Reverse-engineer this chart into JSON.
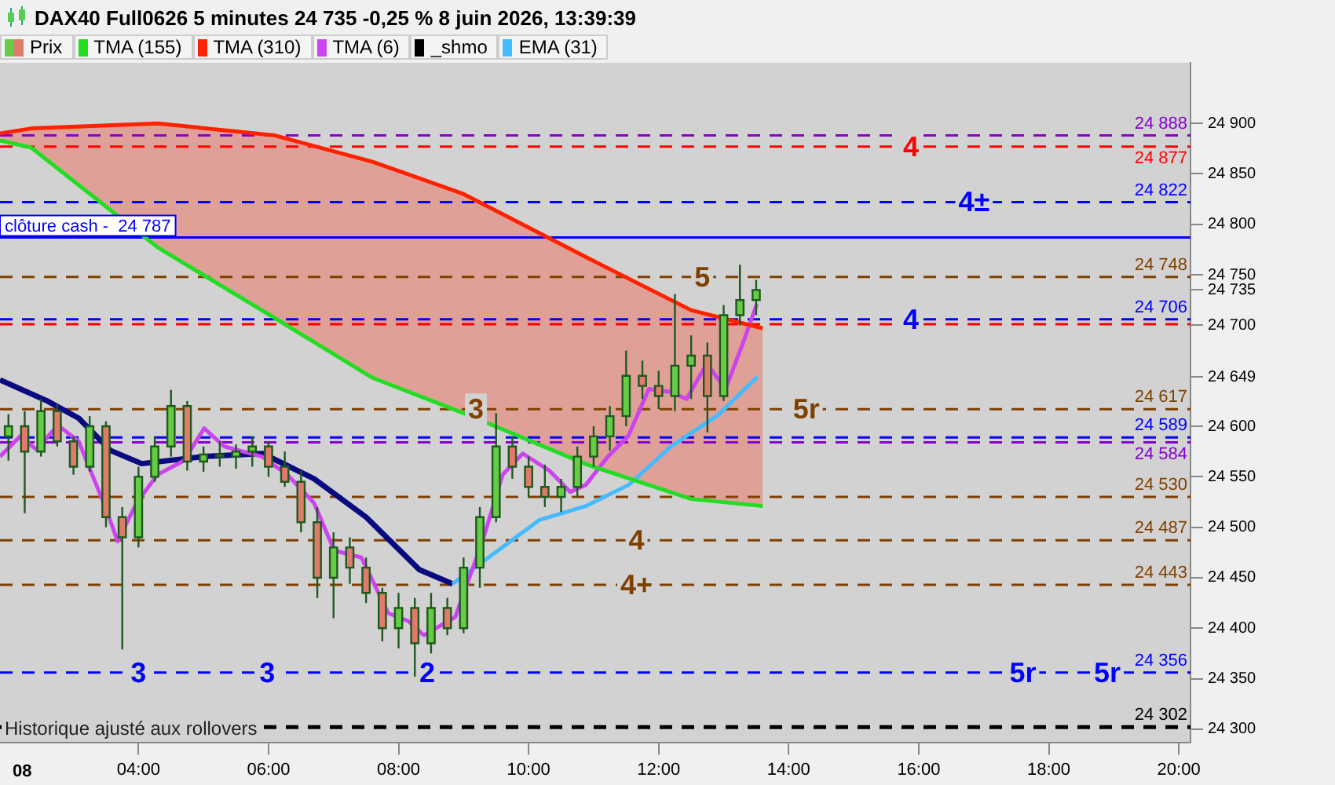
{
  "chart_data": {
    "type": "candlestick",
    "title": "DAX40 Full0626 5 minutes 24 735 -0,25 % 8 juin 2026, 13:39:39",
    "legend": "top left",
    "grid": false,
    "xlabel": "08",
    "xlim": [
      1.87,
      20.18
    ],
    "xticks": [
      {
        "value": 4,
        "label": "04:00"
      },
      {
        "value": 6,
        "label": "06:00"
      },
      {
        "value": 8,
        "label": "08:00"
      },
      {
        "value": 10,
        "label": "10:00"
      },
      {
        "value": 12,
        "label": "12:00"
      },
      {
        "value": 14,
        "label": "14:00"
      },
      {
        "value": 16,
        "label": "16:00"
      },
      {
        "value": 18,
        "label": "18:00"
      },
      {
        "value": 20,
        "label": "20:00"
      }
    ],
    "ylim": [
      24287,
      24960
    ],
    "yticks": [
      {
        "value": 24300,
        "label": "24 300"
      },
      {
        "value": 24350,
        "label": "24 350"
      },
      {
        "value": 24400,
        "label": "24 400"
      },
      {
        "value": 24450,
        "label": "24 450"
      },
      {
        "value": 24500,
        "label": "24 500"
      },
      {
        "value": 24550,
        "label": "24 550"
      },
      {
        "value": 24600,
        "label": "24 600"
      },
      {
        "value": 24649,
        "label": "24 649"
      },
      {
        "value": 24700,
        "label": "24 700"
      },
      {
        "value": 24735,
        "label": "24 735"
      },
      {
        "value": 24750,
        "label": "24 750"
      },
      {
        "value": 24800,
        "label": "24 800"
      },
      {
        "value": 24850,
        "label": "24 850"
      },
      {
        "value": 24900,
        "label": "24 900"
      }
    ],
    "series": [
      {
        "name": "Prix",
        "x": [
          2,
          2.25,
          2.5,
          2.75,
          3,
          3.25,
          3.5,
          3.75,
          4,
          4.25,
          4.5,
          4.75,
          5,
          5.25,
          5.5,
          5.75,
          6,
          6.25,
          6.5,
          6.75,
          7,
          7.25,
          7.5,
          7.75,
          8,
          8.25,
          8.5,
          8.75,
          9,
          9.25,
          9.5,
          9.75,
          10,
          10.25,
          10.5,
          10.75,
          11,
          11.25,
          11.5,
          11.75,
          12,
          12.25,
          12.5,
          12.75,
          13,
          13.25,
          13.5
        ],
        "ohlc": [
          [
            24590,
            24612,
            24566,
            24600
          ],
          [
            24600,
            24615,
            24514,
            24575
          ],
          [
            24575,
            24627,
            24570,
            24615
          ],
          [
            24615,
            24622,
            24580,
            24585
          ],
          [
            24585,
            24590,
            24552,
            24560
          ],
          [
            24560,
            24610,
            24555,
            24600
          ],
          [
            24600,
            24605,
            24500,
            24510
          ],
          [
            24510,
            24520,
            24379,
            24490
          ],
          [
            24490,
            24560,
            24480,
            24550
          ],
          [
            24550,
            24590,
            24545,
            24580
          ],
          [
            24580,
            24636,
            24570,
            24620
          ],
          [
            24620,
            24625,
            24556,
            24565
          ],
          [
            24565,
            24580,
            24555,
            24572
          ],
          [
            24572,
            24585,
            24560,
            24570
          ],
          [
            24570,
            24582,
            24558,
            24575
          ],
          [
            24575,
            24590,
            24560,
            24580
          ],
          [
            24580,
            24585,
            24550,
            24560
          ],
          [
            24560,
            24575,
            24540,
            24545
          ],
          [
            24545,
            24556,
            24495,
            24505
          ],
          [
            24505,
            24520,
            24430,
            24450
          ],
          [
            24450,
            24495,
            24410,
            24480
          ],
          [
            24480,
            24490,
            24444,
            24460
          ],
          [
            24460,
            24470,
            24425,
            24435
          ],
          [
            24435,
            24440,
            24387,
            24400
          ],
          [
            24400,
            24435,
            24380,
            24420
          ],
          [
            24420,
            24430,
            24352,
            24385
          ],
          [
            24385,
            24435,
            24375,
            24420
          ],
          [
            24420,
            24430,
            24393,
            24400
          ],
          [
            24400,
            24470,
            24395,
            24460
          ],
          [
            24460,
            24520,
            24440,
            24510
          ],
          [
            24510,
            24613,
            24505,
            24580
          ],
          [
            24580,
            24590,
            24548,
            24560
          ],
          [
            24560,
            24570,
            24530,
            24540
          ],
          [
            24540,
            24562,
            24520,
            24530
          ],
          [
            24530,
            24548,
            24515,
            24540
          ],
          [
            24540,
            24580,
            24530,
            24570
          ],
          [
            24570,
            24600,
            24560,
            24590
          ],
          [
            24590,
            24620,
            24576,
            24610
          ],
          [
            24610,
            24675,
            24600,
            24650
          ],
          [
            24650,
            24665,
            24627,
            24640
          ],
          [
            24640,
            24655,
            24617,
            24630
          ],
          [
            24630,
            24731,
            24615,
            24660
          ],
          [
            24660,
            24690,
            24627,
            24670
          ],
          [
            24670,
            24683,
            24594,
            24630
          ],
          [
            24630,
            24720,
            24625,
            24710
          ],
          [
            24710,
            24760,
            24700,
            24725
          ],
          [
            24725,
            24745,
            24710,
            24735
          ]
        ],
        "colors": [
          "#66cc44",
          "#e07a6a",
          "#66cc44",
          "#e07a6a",
          "#e07a6a",
          "#66cc44",
          "#e07a6a",
          "#e07a6a",
          "#66cc44",
          "#66cc44",
          "#66cc44",
          "#e07a6a",
          "#66cc44",
          "#e07a6a",
          "#66cc44",
          "#66cc44",
          "#e07a6a",
          "#e07a6a",
          "#e07a6a",
          "#e07a6a",
          "#66cc44",
          "#e07a6a",
          "#e07a6a",
          "#e07a6a",
          "#66cc44",
          "#e07a6a",
          "#66cc44",
          "#e07a6a",
          "#66cc44",
          "#66cc44",
          "#66cc44",
          "#e07a6a",
          "#e07a6a",
          "#e07a6a",
          "#66cc44",
          "#66cc44",
          "#66cc44",
          "#66cc44",
          "#66cc44",
          "#e07a6a",
          "#e07a6a",
          "#66cc44",
          "#66cc44",
          "#e07a6a",
          "#66cc44",
          "#66cc44",
          "#66cc44"
        ]
      },
      {
        "name": "TMA (155)",
        "type": "line",
        "color": "#22dd22",
        "x": [
          1.87,
          2.35,
          4.3,
          6.1,
          7.6,
          9,
          10.9,
          12.5,
          13.6
        ],
        "values": [
          24883,
          24876,
          24777,
          24707,
          24648,
          24613,
          24562,
          24528,
          24521
        ]
      },
      {
        "name": "TMA (310)",
        "type": "area",
        "color": "#ff2200",
        "x": [
          1.87,
          2.35,
          4.3,
          6.1,
          7.6,
          9,
          10.9,
          12.5,
          13.6
        ],
        "values": [
          24890,
          24895,
          24900,
          24888,
          24862,
          24830,
          24767,
          24715,
          24697
        ]
      },
      {
        "name": "TMA (6)",
        "type": "line",
        "color": "#cc44ee",
        "x": [
          1.87,
          2.18,
          2.43,
          2.76,
          3.08,
          3.49,
          3.68,
          3.97,
          4.29,
          4.7,
          5.01,
          5.32,
          5.9,
          6.29,
          6.7,
          7.01,
          7.43,
          7.84,
          8.15,
          8.39,
          8.87,
          9.29,
          9.6,
          9.91,
          10.32,
          10.64,
          10.88,
          11.22,
          11.53,
          11.85,
          12.18,
          12.43,
          12.74,
          13.03,
          13.3,
          13.51
        ],
        "values": [
          24570,
          24590,
          24577,
          24601,
          24585,
          24520,
          24486,
          24524,
          24552,
          24566,
          24598,
          24580,
          24570,
          24552,
          24524,
          24477,
          24470,
          24415,
          24407,
          24393,
          24411,
          24486,
          24552,
          24573,
          24556,
          24535,
          24542,
          24570,
          24590,
          24637,
          24634,
          24627,
          24662,
          24637,
          24683,
          24721
        ]
      },
      {
        "name": "_shmo",
        "type": "line",
        "color": "#000000",
        "line_style": "dashed",
        "x": [
          1.87,
          20.18
        ],
        "values": [
          24302,
          24302
        ],
        "value_labels": [
          null,
          "24 302"
        ]
      },
      {
        "name": "EMA (31)",
        "type": "line",
        "color": "#44bbff",
        "x": [
          8.83,
          9.53,
          10.16,
          10.88,
          11.54,
          12.19,
          12.91,
          13.52
        ],
        "values": [
          24444,
          24477,
          24507,
          24521,
          24542,
          24580,
          24611,
          24649
        ]
      },
      {
        "type": "line",
        "color": "#0a0a80",
        "x": [
          1.87,
          2.6,
          3.08,
          3.57,
          4.05,
          5.01,
          5.91,
          6.7,
          7.5,
          8.32,
          8.83
        ],
        "values": [
          24646,
          24625,
          24608,
          24576,
          24563,
          24570,
          24573,
          24548,
          24510,
          24458,
          24444
        ]
      }
    ],
    "ref_lines": [
      {
        "axis": "y",
        "value": 24888,
        "label": "24 888",
        "color": "#8800cc",
        "line_style": "dashed"
      },
      {
        "axis": "y",
        "value": 24877,
        "label": "24 877",
        "color": "#ff0000",
        "line_style": "dashed"
      },
      {
        "axis": "y",
        "value": 24822,
        "label": "24 822",
        "color": "#0000ff",
        "line_style": "dashed"
      },
      {
        "axis": "y",
        "value": 24787,
        "label": "clôture cash -  24 787",
        "color": "#0000ff",
        "line_style": "solid"
      },
      {
        "axis": "y",
        "value": 24748,
        "label": "24 748",
        "color": "#804000",
        "line_style": "dashed"
      },
      {
        "axis": "y",
        "value": 24706,
        "label": "24 706",
        "color": "#0000ff",
        "line_style": "dashed"
      },
      {
        "axis": "y",
        "value": 24701,
        "color": "#ff0000",
        "line_style": "dashed"
      },
      {
        "axis": "y",
        "value": 24617,
        "label": "24 617",
        "color": "#804000",
        "line_style": "dashed"
      },
      {
        "axis": "y",
        "value": 24589,
        "label": "24 589",
        "color": "#0000ff",
        "line_style": "dashed"
      },
      {
        "axis": "y",
        "value": 24584,
        "label": "24 584",
        "color": "#8800cc",
        "line_style": "dashed"
      },
      {
        "axis": "y",
        "value": 24530,
        "label": "24 530",
        "color": "#804000",
        "line_style": "dashed"
      },
      {
        "axis": "y",
        "value": 24487,
        "label": "24 487",
        "color": "#804000",
        "line_style": "dashed"
      },
      {
        "axis": "y",
        "value": 24443,
        "label": "24 443",
        "color": "#804000",
        "line_style": "dashed"
      },
      {
        "axis": "y",
        "value": 24356,
        "label": "24 356",
        "color": "#0000ff",
        "line_style": "dashed"
      }
    ],
    "annotations": [
      "Historique ajusté aux rollovers",
      {
        "text": "4",
        "x": 15.88,
        "y": 24877
      },
      {
        "text": "4±",
        "x": 16.85,
        "y": 24822
      },
      {
        "text": "5",
        "x": 12.67,
        "y": 24748
      },
      {
        "text": "4",
        "x": 15.88,
        "y": 24706
      },
      {
        "text": "5r",
        "x": 14.27,
        "y": 24617
      },
      {
        "text": "3",
        "x": 9.19,
        "y": 24617
      },
      {
        "text": "4",
        "x": 11.66,
        "y": 24487
      },
      {
        "text": "4+",
        "x": 11.66,
        "y": 24443
      },
      {
        "text": "2",
        "x": 8.44,
        "y": 24356
      },
      {
        "text": "3",
        "x": 4.0,
        "y": 24356
      },
      {
        "text": "3",
        "x": 5.98,
        "y": 24356
      },
      {
        "text": "5r",
        "x": 18.9,
        "y": 24356
      },
      {
        "text": "5r",
        "x": 17.6,
        "y": 24356
      }
    ]
  }
}
